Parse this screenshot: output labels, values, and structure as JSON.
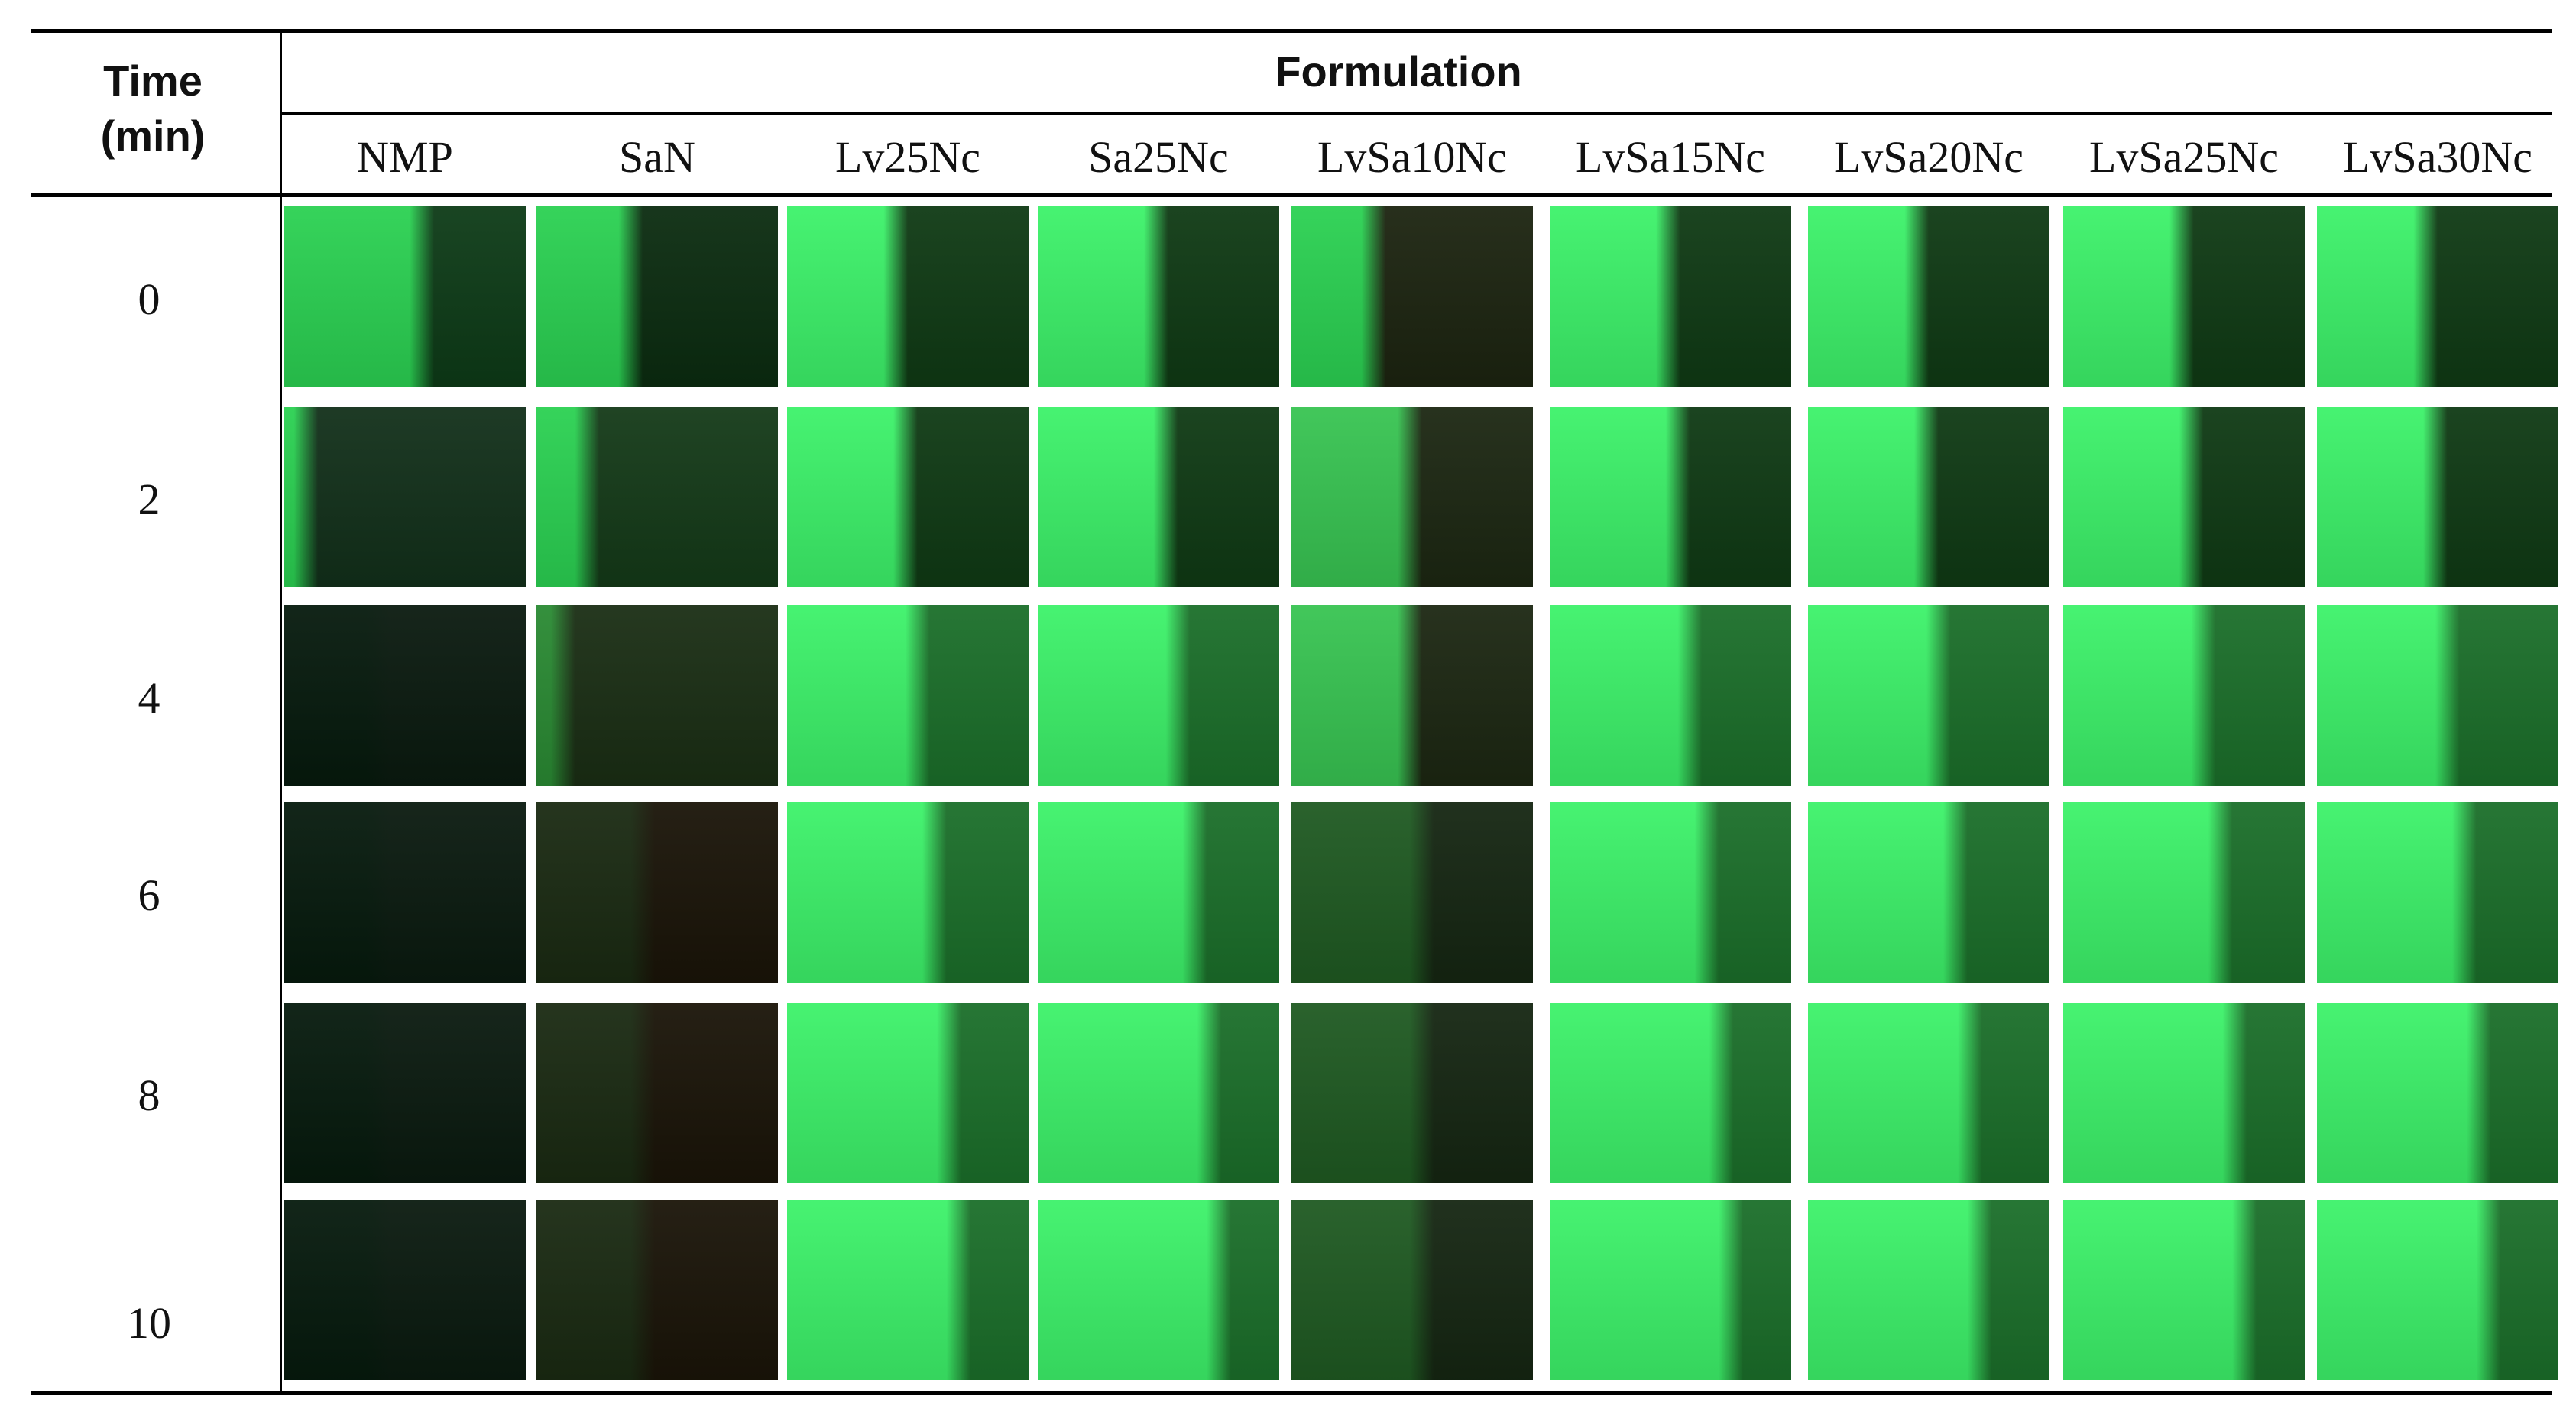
{
  "table": {
    "time_header": "Time\n(min)",
    "formulation_header": "Formulation",
    "columns": [
      "NMP",
      "SaN",
      "Lv25Nc",
      "Sa25Nc",
      "LvSa10Nc",
      "LvSa15Nc",
      "LvSa20Nc",
      "LvSa25Nc",
      "LvSa30Nc"
    ],
    "rows": [
      "0",
      "2",
      "4",
      "6",
      "8",
      "10"
    ]
  },
  "images": {
    "bright_green": "#3df26a",
    "mid_green": "#2bd152",
    "dark_green": "#0f3a14",
    "near_black": "#061a0d",
    "dark_red_black": "#1a1408"
  }
}
